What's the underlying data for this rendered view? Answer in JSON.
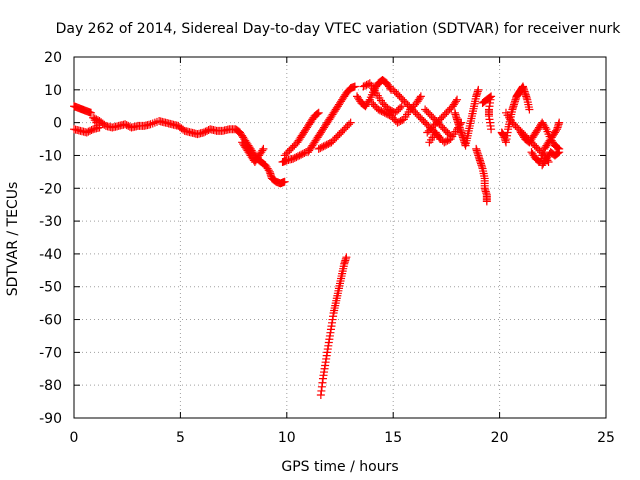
{
  "chart_data": {
    "type": "scatter",
    "title": "Day 262 of 2014, Sidereal Day-to-day VTEC variation (SDTVAR) for receiver nurk",
    "xlabel": "GPS time / hours",
    "ylabel": "SDTVAR / TECUs",
    "xlim": [
      0,
      25
    ],
    "ylim": [
      -90,
      20
    ],
    "x_ticks": [
      0,
      5,
      10,
      15,
      20,
      25
    ],
    "y_ticks": [
      20,
      10,
      0,
      -10,
      -20,
      -30,
      -40,
      -50,
      -60,
      -70,
      -80,
      -90
    ],
    "grid": true,
    "marker": "+",
    "series_color": "#ff0000",
    "series": [
      {
        "name": "SDTVAR",
        "points": [
          [
            0.0,
            5.0
          ],
          [
            0.2,
            4.5
          ],
          [
            0.4,
            4.0
          ],
          [
            0.6,
            3.5
          ],
          [
            0.8,
            3.0
          ],
          [
            0.0,
            -2.0
          ],
          [
            0.3,
            -2.5
          ],
          [
            0.6,
            -3.0
          ],
          [
            0.9,
            -2.0
          ],
          [
            1.2,
            -1.5
          ],
          [
            0.9,
            1.5
          ],
          [
            1.2,
            0.5
          ],
          [
            1.5,
            -1.0
          ],
          [
            1.8,
            -1.5
          ],
          [
            2.1,
            -1.0
          ],
          [
            2.4,
            -0.5
          ],
          [
            2.7,
            -1.5
          ],
          [
            3.0,
            -1.0
          ],
          [
            3.3,
            -1.0
          ],
          [
            3.6,
            -0.5
          ],
          [
            4.0,
            0.5
          ],
          [
            4.3,
            0.0
          ],
          [
            4.6,
            -0.5
          ],
          [
            4.9,
            -1.0
          ],
          [
            5.2,
            -2.5
          ],
          [
            5.5,
            -3.0
          ],
          [
            5.8,
            -3.5
          ],
          [
            6.1,
            -3.0
          ],
          [
            6.4,
            -2.0
          ],
          [
            6.7,
            -2.5
          ],
          [
            7.0,
            -2.5
          ],
          [
            7.3,
            -2.0
          ],
          [
            7.6,
            -2.0
          ],
          [
            7.8,
            -3.0
          ],
          [
            8.0,
            -5.0
          ],
          [
            8.2,
            -7.0
          ],
          [
            8.4,
            -9.0
          ],
          [
            8.6,
            -11.0
          ],
          [
            8.8,
            -12.0
          ],
          [
            9.0,
            -13.0
          ],
          [
            9.2,
            -15.0
          ],
          [
            9.3,
            -17.0
          ],
          [
            9.5,
            -18.0
          ],
          [
            9.7,
            -18.5
          ],
          [
            9.9,
            -18.0
          ],
          [
            7.9,
            -6.0
          ],
          [
            8.1,
            -8.0
          ],
          [
            8.3,
            -10.0
          ],
          [
            8.5,
            -12.0
          ],
          [
            8.7,
            -10.0
          ],
          [
            8.9,
            -8.0
          ],
          [
            9.8,
            -12.0
          ],
          [
            10.0,
            -11.5
          ],
          [
            10.3,
            -11.0
          ],
          [
            10.6,
            -10.0
          ],
          [
            10.9,
            -9.0
          ],
          [
            9.9,
            -10.0
          ],
          [
            10.2,
            -8.0
          ],
          [
            10.5,
            -6.0
          ],
          [
            10.7,
            -4.0
          ],
          [
            10.9,
            -2.0
          ],
          [
            11.1,
            0.0
          ],
          [
            11.3,
            2.0
          ],
          [
            11.5,
            3.0
          ],
          [
            11.0,
            -9.0
          ],
          [
            11.2,
            -7.0
          ],
          [
            11.4,
            -5.0
          ],
          [
            11.6,
            -3.0
          ],
          [
            11.8,
            -1.0
          ],
          [
            12.0,
            1.0
          ],
          [
            12.2,
            3.0
          ],
          [
            12.4,
            5.0
          ],
          [
            12.6,
            7.0
          ],
          [
            12.8,
            9.0
          ],
          [
            13.0,
            10.5
          ],
          [
            13.2,
            11.0
          ],
          [
            11.5,
            -8.0
          ],
          [
            11.8,
            -7.0
          ],
          [
            12.1,
            -6.0
          ],
          [
            12.4,
            -4.0
          ],
          [
            12.7,
            -2.0
          ],
          [
            13.0,
            0.0
          ],
          [
            11.6,
            -83.0
          ],
          [
            11.7,
            -78.0
          ],
          [
            11.8,
            -74.0
          ],
          [
            11.9,
            -70.0
          ],
          [
            12.0,
            -66.0
          ],
          [
            12.1,
            -62.0
          ],
          [
            12.2,
            -58.0
          ],
          [
            12.3,
            -55.0
          ],
          [
            12.4,
            -52.0
          ],
          [
            12.5,
            -49.0
          ],
          [
            12.6,
            -46.0
          ],
          [
            12.7,
            -43.0
          ],
          [
            12.8,
            -41.0
          ],
          [
            13.3,
            8.0
          ],
          [
            13.5,
            6.0
          ],
          [
            13.7,
            5.0
          ],
          [
            13.9,
            7.0
          ],
          [
            14.1,
            10.0
          ],
          [
            14.3,
            12.0
          ],
          [
            14.5,
            13.0
          ],
          [
            14.7,
            12.0
          ],
          [
            14.9,
            10.0
          ],
          [
            13.6,
            11.0
          ],
          [
            13.9,
            12.0
          ],
          [
            14.2,
            9.0
          ],
          [
            14.5,
            6.0
          ],
          [
            14.8,
            4.0
          ],
          [
            15.1,
            3.0
          ],
          [
            15.4,
            5.0
          ],
          [
            14.0,
            6.0
          ],
          [
            14.3,
            4.0
          ],
          [
            14.6,
            3.0
          ],
          [
            14.9,
            2.0
          ],
          [
            15.2,
            0.0
          ],
          [
            15.5,
            1.0
          ],
          [
            15.8,
            4.0
          ],
          [
            16.1,
            6.0
          ],
          [
            16.3,
            8.0
          ],
          [
            15.0,
            10.0
          ],
          [
            15.3,
            8.0
          ],
          [
            15.6,
            6.0
          ],
          [
            15.9,
            4.0
          ],
          [
            16.2,
            2.0
          ],
          [
            16.5,
            0.0
          ],
          [
            16.8,
            -2.0
          ],
          [
            17.1,
            -4.0
          ],
          [
            17.4,
            -6.0
          ],
          [
            17.7,
            -5.0
          ],
          [
            18.0,
            -2.0
          ],
          [
            18.2,
            0.0
          ],
          [
            16.6,
            -3.0
          ],
          [
            16.9,
            -1.0
          ],
          [
            17.2,
            1.0
          ],
          [
            17.5,
            3.0
          ],
          [
            17.8,
            5.0
          ],
          [
            18.0,
            7.0
          ],
          [
            16.5,
            4.0
          ],
          [
            16.8,
            2.0
          ],
          [
            17.1,
            0.0
          ],
          [
            17.4,
            -2.0
          ],
          [
            17.7,
            -4.0
          ],
          [
            16.7,
            -6.0
          ],
          [
            17.0,
            -3.0
          ],
          [
            17.2,
            -5.0
          ],
          [
            17.9,
            3.0
          ],
          [
            18.0,
            1.0
          ],
          [
            18.1,
            -1.0
          ],
          [
            18.2,
            -3.0
          ],
          [
            18.3,
            -5.0
          ],
          [
            18.4,
            -7.0
          ],
          [
            18.5,
            -4.0
          ],
          [
            18.6,
            -1.0
          ],
          [
            18.7,
            2.0
          ],
          [
            18.8,
            5.0
          ],
          [
            18.9,
            8.0
          ],
          [
            19.0,
            10.0
          ],
          [
            18.9,
            -8.0
          ],
          [
            19.0,
            -10.0
          ],
          [
            19.1,
            -12.0
          ],
          [
            19.2,
            -14.0
          ],
          [
            19.3,
            -17.0
          ],
          [
            19.3,
            -20.0
          ],
          [
            19.4,
            -22.0
          ],
          [
            19.4,
            -24.0
          ],
          [
            19.2,
            6.0
          ],
          [
            19.4,
            7.0
          ],
          [
            19.6,
            8.0
          ],
          [
            19.5,
            4.0
          ],
          [
            19.5,
            2.0
          ],
          [
            19.6,
            -2.0
          ],
          [
            20.1,
            -3.0
          ],
          [
            20.2,
            -4.0
          ],
          [
            20.3,
            -6.0
          ],
          [
            20.4,
            -2.0
          ],
          [
            20.5,
            1.0
          ],
          [
            20.6,
            4.0
          ],
          [
            20.7,
            6.0
          ],
          [
            20.8,
            8.0
          ],
          [
            20.9,
            9.0
          ],
          [
            21.0,
            10.0
          ],
          [
            21.1,
            11.0
          ],
          [
            21.2,
            9.0
          ],
          [
            21.3,
            7.0
          ],
          [
            21.4,
            4.0
          ],
          [
            20.3,
            3.0
          ],
          [
            20.6,
            0.0
          ],
          [
            20.9,
            -2.0
          ],
          [
            21.2,
            -4.0
          ],
          [
            21.5,
            -6.0
          ],
          [
            21.8,
            -8.0
          ],
          [
            22.1,
            -10.0
          ],
          [
            22.3,
            -12.0
          ],
          [
            21.0,
            -3.0
          ],
          [
            21.2,
            -5.0
          ],
          [
            21.4,
            -6.0
          ],
          [
            21.6,
            -4.0
          ],
          [
            21.8,
            -2.0
          ],
          [
            22.0,
            0.0
          ],
          [
            22.2,
            -2.0
          ],
          [
            22.4,
            -5.0
          ],
          [
            22.6,
            -7.0
          ],
          [
            22.8,
            -8.0
          ],
          [
            21.5,
            -9.0
          ],
          [
            21.7,
            -11.0
          ],
          [
            21.9,
            -12.0
          ],
          [
            22.1,
            -8.0
          ],
          [
            22.3,
            -6.0
          ],
          [
            22.5,
            -4.0
          ],
          [
            22.7,
            -2.0
          ],
          [
            22.8,
            0.0
          ],
          [
            22.0,
            -13.0
          ],
          [
            22.2,
            -11.0
          ],
          [
            22.4,
            -9.0
          ],
          [
            22.6,
            -10.0
          ],
          [
            22.8,
            -9.0
          ]
        ]
      }
    ]
  }
}
